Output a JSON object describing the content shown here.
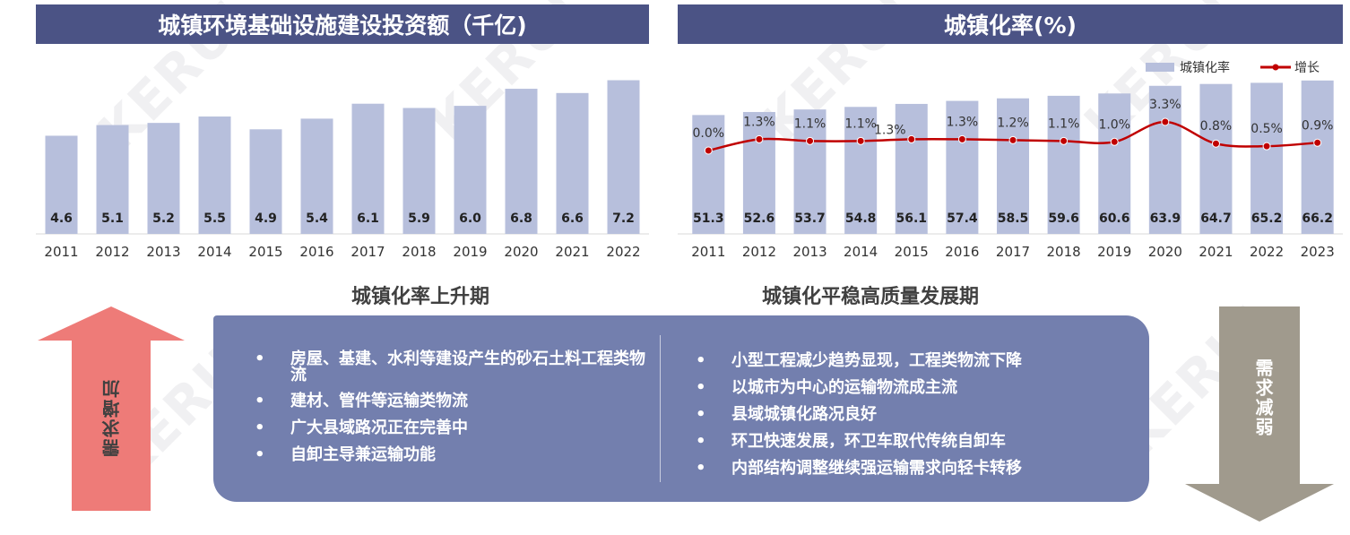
{
  "watermark": "KERUI",
  "left_chart": {
    "title": "城镇环境基础设施建设投资额（千亿)",
    "colors": {
      "bar": "#b7bfdc",
      "title_bg": "#4b5385"
    }
  },
  "right_chart": {
    "title": "城镇化率(%)",
    "legend": {
      "bar_label": "城镇化率",
      "line_label": "增长"
    },
    "colors": {
      "bar": "#b7bfdc",
      "line": "#c00000"
    }
  },
  "chart_data": [
    {
      "type": "bar",
      "title": "城镇环境基础设施建设投资额（千亿)",
      "categories": [
        "2011",
        "2012",
        "2013",
        "2014",
        "2015",
        "2016",
        "2017",
        "2018",
        "2019",
        "2020",
        "2021",
        "2022"
      ],
      "values": [
        4.6,
        5.1,
        5.2,
        5.5,
        4.9,
        5.4,
        6.1,
        5.9,
        6.0,
        6.8,
        6.6,
        7.2
      ],
      "value_labels": [
        "4.6",
        "5.1",
        "5.2",
        "5.5",
        "4.9",
        "5.4",
        "6.1",
        "5.9",
        "6.0",
        "6.8",
        "6.6",
        "7.2"
      ],
      "ylim": [
        0,
        7.6
      ],
      "grid": false
    },
    {
      "type": "bar",
      "title": "城镇化率(%)",
      "categories": [
        "2011",
        "2012",
        "2013",
        "2014",
        "2015",
        "2016",
        "2017",
        "2018",
        "2019",
        "2020",
        "2021",
        "2022",
        "2023"
      ],
      "series": [
        {
          "name": "城镇化率",
          "type": "bar",
          "values": [
            51.3,
            52.6,
            53.7,
            54.8,
            56.1,
            57.4,
            58.5,
            59.6,
            60.6,
            63.9,
            64.7,
            65.2,
            66.2
          ],
          "labels": [
            "51.3",
            "52.6",
            "53.7",
            "54.8",
            "56.1",
            "57.4",
            "58.5",
            "59.6",
            "60.6",
            "63.9",
            "64.7",
            "65.2",
            "66.2"
          ]
        },
        {
          "name": "增长",
          "type": "line",
          "values": [
            0.0,
            1.3,
            1.1,
            1.1,
            1.3,
            1.3,
            1.2,
            1.1,
            1.0,
            3.3,
            0.8,
            0.5,
            0.9
          ],
          "labels": [
            "0.0%",
            "1.3%",
            "1.1%",
            "1.1%",
            "1.3%",
            "1.3%",
            "1.2%",
            "1.1%",
            "1.0%",
            "3.3%",
            "0.8%",
            "0.5%",
            "0.9%"
          ]
        }
      ],
      "legend_position": "top-right",
      "grid": false
    }
  ],
  "phases": {
    "left": "城镇化率上升期",
    "right": "城镇化平稳高质量发展期"
  },
  "left_points": [
    "房屋、基建、水利等建设产生的砂石土料工程类物流",
    "建材、管件等运输类物流",
    "广大县域路况正在完善中",
    "自卸主导兼运输功能"
  ],
  "right_points": [
    "小型工程减少趋势显现，工程类物流下降",
    "以城市为中心的运输物流成主流",
    "县域城镇化路况良好",
    "环卫快速发展，环卫车取代传统自卸车",
    "内部结构调整继续强运输需求向轻卡转移"
  ],
  "bullet_char": "•",
  "arrows": {
    "up": {
      "label": "需求增加",
      "color": "#ee7b78"
    },
    "down": {
      "label": "需求减弱",
      "color": "#a09a8d"
    }
  },
  "panel_color": "#737fae"
}
